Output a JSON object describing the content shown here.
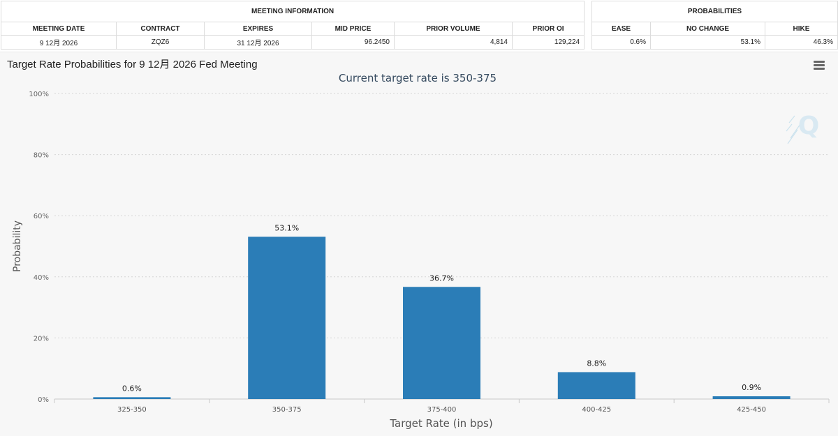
{
  "meeting_info": {
    "group_label": "MEETING INFORMATION",
    "headers": [
      "MEETING DATE",
      "CONTRACT",
      "EXPIRES",
      "MID PRICE",
      "PRIOR VOLUME",
      "PRIOR OI"
    ],
    "row": [
      "9 12月 2026",
      "ZQZ6",
      "31 12月 2026",
      "96.2450",
      "4,814",
      "129,224"
    ]
  },
  "probabilities": {
    "group_label": "PROBABILITIES",
    "headers": [
      "EASE",
      "NO CHANGE",
      "HIKE"
    ],
    "row": [
      "0.6%",
      "53.1%",
      "46.3%"
    ]
  },
  "chart_title": "Target Rate Probabilities for 9 12月 2026 Fed Meeting",
  "menu_icon": "hamburger-menu-icon",
  "watermark_icon": "q-logo-icon",
  "chart_data": {
    "type": "bar",
    "title": "",
    "subtitle": "Current target rate is 350-375",
    "xlabel": "Target Rate (in bps)",
    "ylabel": "Probability",
    "categories": [
      "325-350",
      "350-375",
      "375-400",
      "400-425",
      "425-450"
    ],
    "values": [
      0.6,
      53.1,
      36.7,
      8.8,
      0.9
    ],
    "data_labels": [
      "0.6%",
      "53.1%",
      "36.7%",
      "8.8%",
      "0.9%"
    ],
    "ylim": [
      0,
      100
    ],
    "yticks": [
      0,
      20,
      40,
      60,
      80,
      100
    ],
    "ytick_labels": [
      "0%",
      "20%",
      "40%",
      "60%",
      "80%",
      "100%"
    ],
    "grid": true,
    "bar_color": "#2b7db7",
    "legend": "none"
  }
}
